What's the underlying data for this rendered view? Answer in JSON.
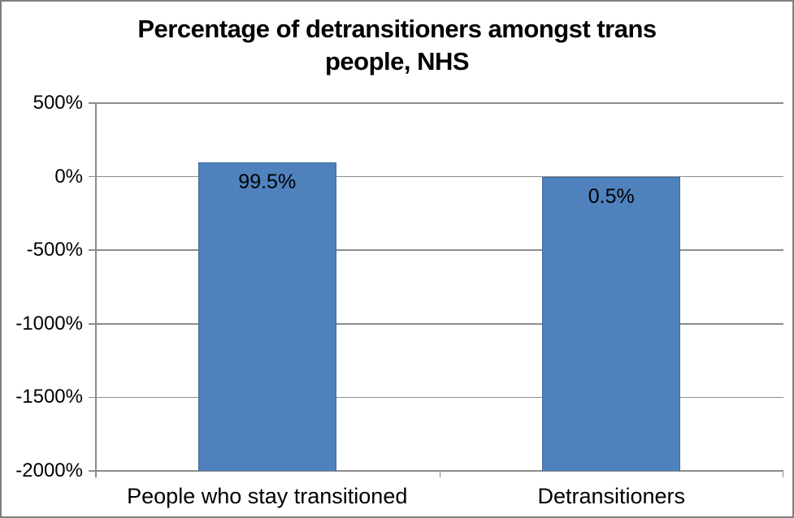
{
  "chart_data": {
    "type": "bar",
    "title": "Percentage of detransitioners amongst trans people, NHS",
    "title_lines": [
      "Percentage of detransitioners amongst trans",
      "people, NHS"
    ],
    "categories": [
      "People who stay transitioned",
      "Detransitioners"
    ],
    "values": [
      99.5,
      0.5
    ],
    "data_labels": [
      "99.5%",
      "0.5%"
    ],
    "xlabel": "",
    "ylabel": "",
    "ylim": [
      -2000,
      500
    ],
    "yticks": [
      {
        "value": 500,
        "label": "500%"
      },
      {
        "value": 0,
        "label": "0%"
      },
      {
        "value": -500,
        "label": "-500%"
      },
      {
        "value": -1000,
        "label": "-1000%"
      },
      {
        "value": -1500,
        "label": "-1500%"
      },
      {
        "value": -2000,
        "label": "-2000%"
      }
    ],
    "grid": true,
    "legend": "none",
    "colors": {
      "bar_fill": "#4F81BD",
      "bar_border": "#41689E",
      "gridline": "#8C8C8C",
      "axis": "#8C8C8C",
      "text": "#000000",
      "frame_border": "#7F7F7F",
      "background": "#FFFFFF"
    }
  }
}
